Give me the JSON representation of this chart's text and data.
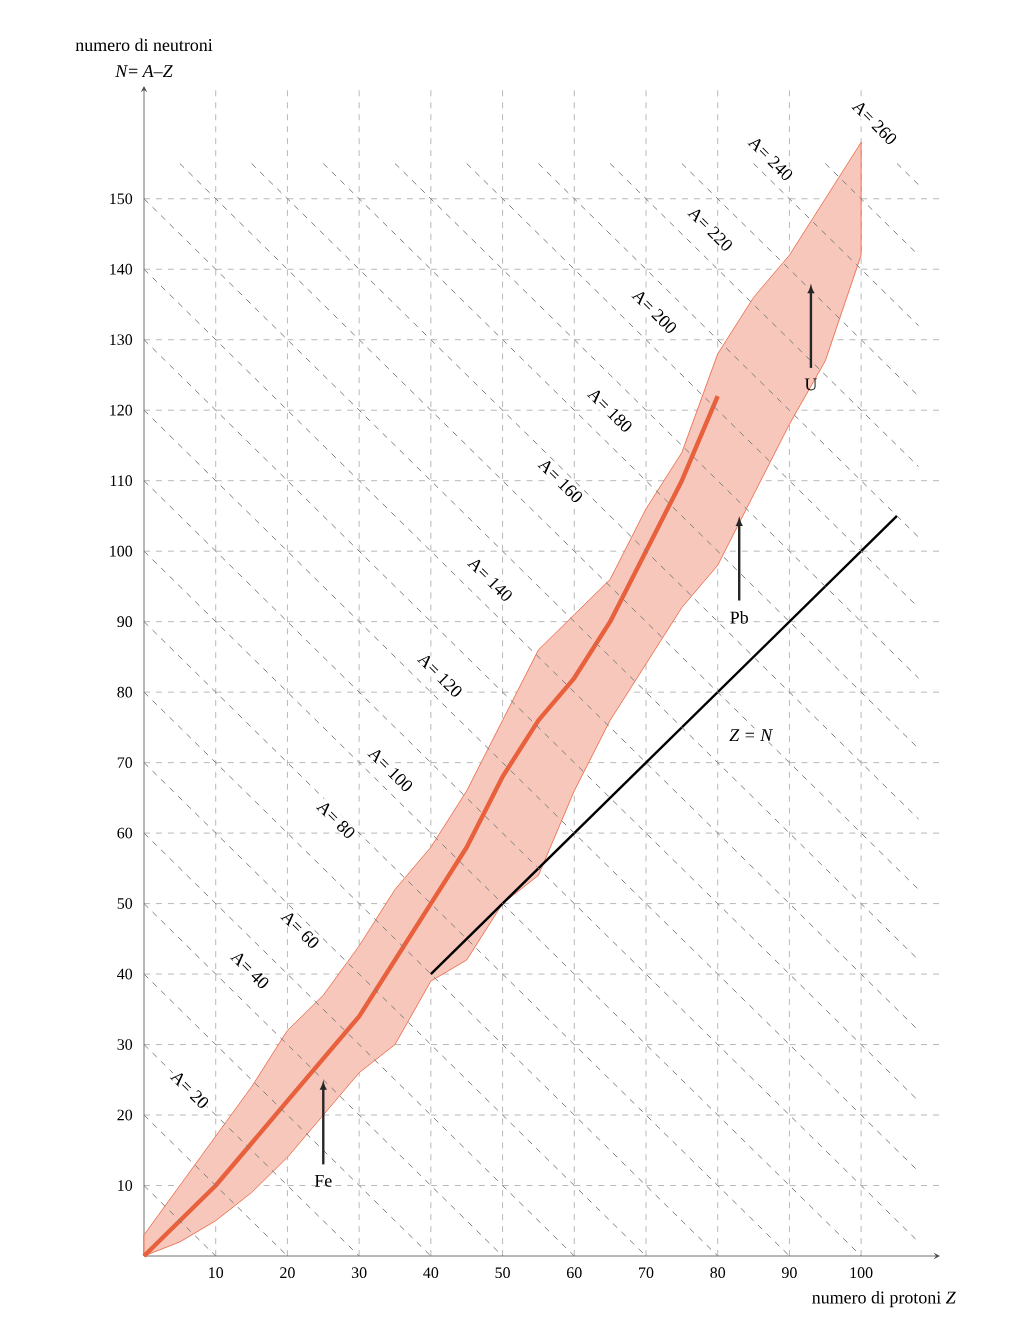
{
  "chart_data": {
    "type": "line",
    "xlabel": "numero di protoni *Z*",
    "ylabel": "numero di neutroni",
    "xlim": [
      0,
      111
    ],
    "ylim": [
      0,
      166
    ],
    "xticks": [
      10,
      20,
      30,
      40,
      50,
      60,
      70,
      80,
      90,
      100
    ],
    "yticks": [
      10,
      20,
      30,
      40,
      50,
      60,
      70,
      80,
      90,
      100,
      110,
      120,
      130,
      140,
      150
    ],
    "grid": true,
    "annotations": [
      "*N*= *A*–*Z*",
      {
        "text": "A= 20",
        "x": 6.4,
        "y": 23.6
      },
      {
        "text": "A= 40",
        "x": 14.8,
        "y": 40.6
      },
      {
        "text": "A= 60",
        "x": 21.8,
        "y": 46.3
      },
      {
        "text": "A= 80",
        "x": 26.8,
        "y": 61.9
      },
      {
        "text": "A= 100",
        "x": 34.4,
        "y": 69
      },
      {
        "text": "A= 120",
        "x": 41.3,
        "y": 82.4
      },
      {
        "text": "A= 140",
        "x": 48.3,
        "y": 96
      },
      {
        "text": "A= 160",
        "x": 58.1,
        "y": 110
      },
      {
        "text": "A= 180",
        "x": 65,
        "y": 120
      },
      {
        "text": "A= 200",
        "x": 71.2,
        "y": 134
      },
      {
        "text": "A= 220",
        "x": 79,
        "y": 145.7
      },
      {
        "text": "A= 240",
        "x": 87.4,
        "y": 155.7
      },
      {
        "text": "A= 260",
        "x": 101.9,
        "y": 160.8
      },
      {
        "text": "Fe",
        "x": 25,
        "y": 25
      },
      {
        "text": "Pb",
        "x": 83,
        "y": 105
      },
      {
        "text": "U",
        "x": 93,
        "y": 138
      },
      {
        "text": "Z = N",
        "x": 84.6,
        "y": 73.9
      }
    ],
    "series": [
      {
        "color": "#e8603c",
        "line_style": "solid",
        "x": [
          0,
          5,
          10,
          15,
          20,
          25,
          30,
          35,
          40,
          45,
          50,
          55,
          60,
          65,
          70,
          75,
          80,
          85,
          90,
          95,
          100
        ],
        "values": [
          0,
          5,
          10,
          16,
          22,
          28,
          34,
          42,
          50,
          58,
          68,
          76,
          82,
          90,
          100,
          110,
          122,
          null,
          null,
          null,
          null
        ],
        "lower": [
          0,
          2,
          5,
          9,
          14,
          20,
          26,
          30,
          39,
          42,
          50,
          54,
          66,
          76,
          84,
          92,
          98,
          108,
          118,
          127,
          142
        ],
        "upper": [
          3,
          10,
          17,
          24,
          32,
          37,
          44,
          52,
          58,
          66,
          76,
          86,
          91,
          96,
          106,
          114,
          128,
          136,
          142,
          150,
          158
        ]
      },
      {
        "color": "#000000",
        "line_style": "solid",
        "x": [
          40,
          105
        ],
        "values": [
          40,
          105
        ]
      },
      {
        "color": "#808080",
        "line_style": "dashed",
        "x": [
          0,
          10
        ],
        "values": [
          10,
          0
        ]
      },
      {
        "color": "#808080",
        "line_style": "dashed",
        "x": [
          0,
          20
        ],
        "values": [
          20,
          0
        ]
      },
      {
        "color": "#808080",
        "line_style": "dashed",
        "x": [
          0,
          30
        ],
        "values": [
          30,
          0
        ]
      },
      {
        "color": "#808080",
        "line_style": "dashed",
        "x": [
          0,
          40
        ],
        "values": [
          40,
          0
        ]
      },
      {
        "color": "#808080",
        "line_style": "dashed",
        "x": [
          0,
          50
        ],
        "values": [
          50,
          0
        ]
      },
      {
        "color": "#808080",
        "line_style": "dashed",
        "x": [
          0,
          60
        ],
        "values": [
          60,
          0
        ]
      },
      {
        "color": "#808080",
        "line_style": "dashed",
        "x": [
          0,
          70
        ],
        "values": [
          70,
          0
        ]
      },
      {
        "color": "#808080",
        "line_style": "dashed",
        "x": [
          0,
          80
        ],
        "values": [
          80,
          0
        ]
      },
      {
        "color": "#808080",
        "line_style": "dashed",
        "x": [
          0,
          90
        ],
        "values": [
          90,
          0
        ]
      },
      {
        "color": "#808080",
        "line_style": "dashed",
        "x": [
          0,
          100
        ],
        "values": [
          100,
          0
        ]
      },
      {
        "color": "#808080",
        "line_style": "dashed",
        "x": [
          0,
          108
        ],
        "values": [
          110,
          2
        ]
      },
      {
        "color": "#808080",
        "line_style": "dashed",
        "x": [
          0,
          108
        ],
        "values": [
          120,
          12
        ]
      },
      {
        "color": "#808080",
        "line_style": "dashed",
        "x": [
          0,
          108
        ],
        "values": [
          130,
          22
        ]
      },
      {
        "color": "#808080",
        "line_style": "dashed",
        "x": [
          0,
          108
        ],
        "values": [
          140,
          32
        ]
      },
      {
        "color": "#808080",
        "line_style": "dashed",
        "x": [
          0,
          108
        ],
        "values": [
          150,
          42
        ]
      },
      {
        "color": "#808080",
        "line_style": "dashed",
        "x": [
          5,
          108
        ],
        "values": [
          155,
          52
        ]
      },
      {
        "color": "#808080",
        "line_style": "dashed",
        "x": [
          15,
          108
        ],
        "values": [
          155,
          62
        ]
      },
      {
        "color": "#808080",
        "line_style": "dashed",
        "x": [
          25,
          108
        ],
        "values": [
          155,
          72
        ]
      },
      {
        "color": "#808080",
        "line_style": "dashed",
        "x": [
          35,
          108
        ],
        "values": [
          155,
          82
        ]
      },
      {
        "color": "#808080",
        "line_style": "dashed",
        "x": [
          45,
          108
        ],
        "values": [
          155,
          92
        ]
      },
      {
        "color": "#808080",
        "line_style": "dashed",
        "x": [
          55,
          108
        ],
        "values": [
          155,
          102
        ]
      },
      {
        "color": "#808080",
        "line_style": "dashed",
        "x": [
          65,
          108
        ],
        "values": [
          155,
          112
        ]
      },
      {
        "color": "#808080",
        "line_style": "dashed",
        "x": [
          75,
          108
        ],
        "values": [
          155,
          122
        ]
      },
      {
        "color": "#808080",
        "line_style": "dashed",
        "x": [
          85,
          108
        ],
        "values": [
          155,
          132
        ]
      },
      {
        "color": "#808080",
        "line_style": "dashed",
        "x": [
          95,
          108
        ],
        "values": [
          155,
          142
        ]
      },
      {
        "color": "#808080",
        "line_style": "dashed",
        "x": [
          105,
          108
        ],
        "values": [
          155,
          152
        ]
      }
    ]
  }
}
